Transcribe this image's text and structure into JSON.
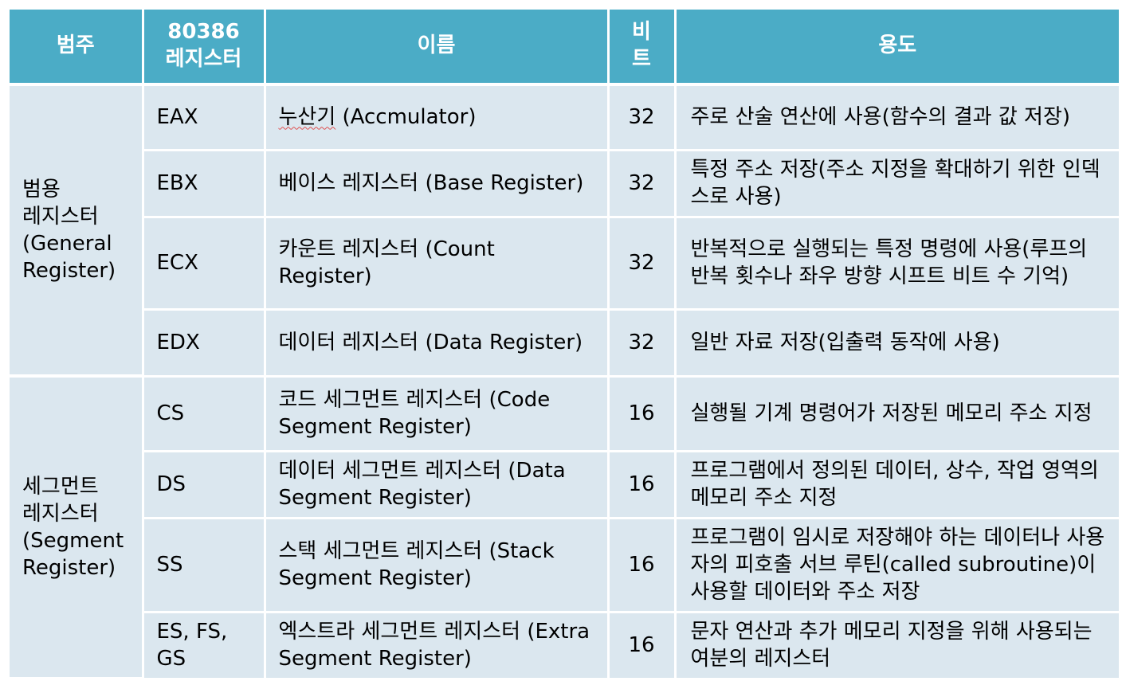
{
  "headers": {
    "category": "범주",
    "register_line1": "80386",
    "register_line2": "레지스터",
    "name": "이름",
    "bits_line1": "비",
    "bits_line2": "트",
    "usage": "용도"
  },
  "groups": {
    "general": "범용 레지스터 (General Register)",
    "segment": "세그먼트 레지스터 (Segment Register)"
  },
  "rows": [
    {
      "register": "EAX",
      "name_ko": "누산기",
      "name_en": " (Accmulator)",
      "bits": "32",
      "usage": "주로 산술 연산에 사용(함수의 결과 값 저장)"
    },
    {
      "register": "EBX",
      "name": "베이스 레지스터 (Base Register)",
      "bits": "32",
      "usage": "특정 주소 저장(주소 지정을 확대하기 위한 인덱스로 사용)"
    },
    {
      "register": "ECX",
      "name": "카운트 레지스터 (Count Register)",
      "bits": "32",
      "usage": "반복적으로 실행되는 특정 명령에 사용(루프의 반복 횟수나 좌우 방향 시프트 비트 수 기억)"
    },
    {
      "register": "EDX",
      "name": "데이터 레지스터 (Data Register)",
      "bits": "32",
      "usage": "일반 자료 저장(입출력 동작에 사용)"
    },
    {
      "register": "CS",
      "name": "코드 세그먼트 레지스터 (Code Segment Register)",
      "bits": "16",
      "usage": "실행될 기계 명령어가 저장된 메모리 주소 지정"
    },
    {
      "register": "DS",
      "name": "데이터 세그먼트 레지스터 (Data Segment Register)",
      "bits": "16",
      "usage": "프로그램에서 정의된 데이터, 상수, 작업 영역의 메모리 주소 지정"
    },
    {
      "register": "SS",
      "name": "스택 세그먼트 레지스터 (Stack Segment Register)",
      "bits": "16",
      "usage": "프로그램이 임시로 저장해야 하는 데이터나 사용자의 피호출 서브 루틴(called subroutine)이 사용할 데이터와 주소 저장"
    },
    {
      "register": "ES, FS, GS",
      "name": "엑스트라 세그먼트 레지스터 (Extra Segment Register)",
      "bits": "16",
      "usage": "문자 연산과 추가 메모리 지정을 위해 사용되는 여분의 레지스터"
    }
  ]
}
